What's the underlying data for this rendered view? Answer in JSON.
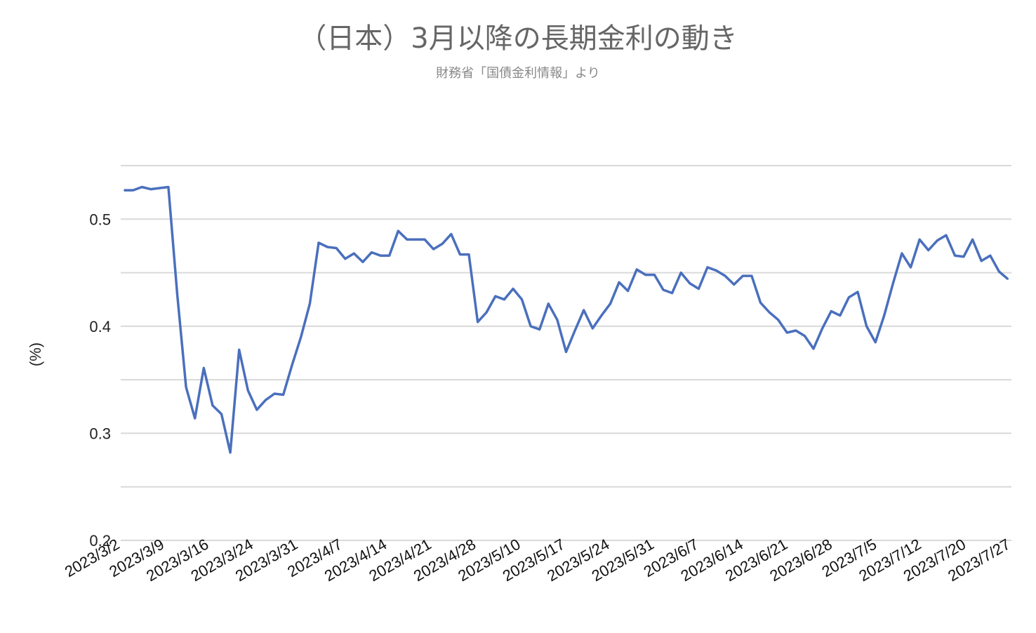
{
  "chart_data": {
    "type": "line",
    "title": "（日本）3月以降の長期金利の動き",
    "subtitle": "財務省「国債金利情報」より",
    "xlabel": "",
    "ylabel": "(%)",
    "ylim": [
      0.2,
      0.55
    ],
    "yticks": [
      "0.2",
      "0.3",
      "0.4",
      "0.5"
    ],
    "grid": true,
    "line_color": "#4a6fbd",
    "x_tick_labels": [
      "2023/3/2",
      "2023/3/9",
      "2023/3/16",
      "2023/3/24",
      "2023/3/31",
      "2023/4/7",
      "2023/4/14",
      "2023/4/21",
      "2023/4/28",
      "2023/5/10",
      "2023/5/17",
      "2023/5/24",
      "2023/5/31",
      "2023/6/7",
      "2023/6/14",
      "2023/6/21",
      "2023/6/28",
      "2023/7/5",
      "2023/7/12",
      "2023/7/20",
      "2023/7/27"
    ],
    "series": [
      {
        "values": [
          0.527,
          0.527,
          0.53,
          0.528,
          0.529,
          0.53,
          0.43,
          0.343,
          0.314,
          0.361,
          0.326,
          0.318,
          0.282,
          0.378,
          0.34,
          0.322,
          0.331,
          0.337,
          0.336,
          0.364,
          0.39,
          0.421,
          0.478,
          0.474,
          0.473,
          0.463,
          0.468,
          0.46,
          0.469,
          0.466,
          0.466,
          0.489,
          0.481,
          0.481,
          0.481,
          0.472,
          0.477,
          0.486,
          0.467,
          0.467,
          0.404,
          0.413,
          0.428,
          0.425,
          0.435,
          0.425,
          0.4,
          0.397,
          0.421,
          0.406,
          0.376,
          0.396,
          0.415,
          0.398,
          0.41,
          0.421,
          0.441,
          0.433,
          0.453,
          0.448,
          0.448,
          0.434,
          0.431,
          0.45,
          0.44,
          0.435,
          0.455,
          0.452,
          0.447,
          0.439,
          0.447,
          0.447,
          0.422,
          0.413,
          0.406,
          0.394,
          0.396,
          0.391,
          0.379,
          0.398,
          0.414,
          0.41,
          0.427,
          0.432,
          0.4,
          0.385,
          0.41,
          0.44,
          0.468,
          0.455,
          0.481,
          0.471,
          0.48,
          0.485,
          0.466,
          0.465,
          0.481,
          0.461,
          0.466,
          0.451,
          0.444
        ]
      }
    ]
  }
}
